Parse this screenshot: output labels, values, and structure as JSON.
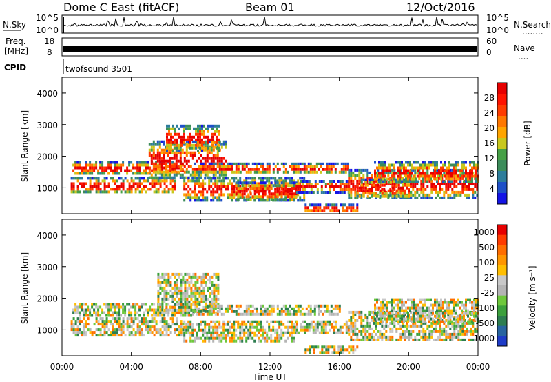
{
  "header": {
    "radar": "Dome C East (fitACF)",
    "beam": "Beam 01",
    "date": "12/Oct/2016"
  },
  "noise_panel": {
    "left_label": "N.Sky",
    "right_label": "N.Search",
    "right_sublabel": "........",
    "tick_top": "10^5",
    "tick_bottom": "10^0"
  },
  "freq_panel": {
    "label_line1": "Freq.",
    "label_line2": "[MHz]",
    "tick_top": "18",
    "tick_bottom": "8",
    "right_tick_top": "60",
    "right_tick_bottom": "0",
    "right_label": "Nave",
    "right_sublabel": "....",
    "cpid_label": "CPID",
    "cpid_value": "twofsound 3501"
  },
  "chart_data": [
    {
      "type": "heatmap",
      "quantity": "Power",
      "ylabel": "Slant Range [km]",
      "yticks": [
        "1000",
        "2000",
        "3000",
        "4000"
      ],
      "ylim": [
        180,
        4500
      ],
      "xlim_hours": [
        0,
        24
      ],
      "colorbar_label": "Power [dB]",
      "colorbar_ticks": [
        "4",
        "8",
        "12",
        "16",
        "20",
        "24",
        "28"
      ],
      "colorbar_colors": [
        "#1414e6",
        "#1e50c8",
        "#2d7d9b",
        "#3c8c5a",
        "#46a046",
        "#c8c81e",
        "#ffa500",
        "#ff7800",
        "#ff3c00",
        "#ff1400",
        "#e60000"
      ],
      "regions": [
        {
          "t": [
            0.6,
            7.0
          ],
          "r": [
            1450,
            1850
          ]
        },
        {
          "t": [
            0.5,
            6.5
          ],
          "r": [
            850,
            1350
          ]
        },
        {
          "t": [
            5.0,
            9.5
          ],
          "r": [
            1300,
            2500
          ]
        },
        {
          "t": [
            6.0,
            9.0
          ],
          "r": [
            2200,
            3000
          ]
        },
        {
          "t": [
            7.5,
            16.5
          ],
          "r": [
            1500,
            1800
          ]
        },
        {
          "t": [
            7.0,
            14.0
          ],
          "r": [
            650,
            1350
          ]
        },
        {
          "t": [
            10.0,
            13.5
          ],
          "r": [
            600,
            1200
          ]
        },
        {
          "t": [
            13.5,
            16.5
          ],
          "r": [
            900,
            1250
          ]
        },
        {
          "t": [
            14.0,
            17.0
          ],
          "r": [
            250,
            500
          ]
        },
        {
          "t": [
            16.5,
            24.0
          ],
          "r": [
            700,
            1600
          ]
        },
        {
          "t": [
            17.0,
            20.0
          ],
          "r": [
            700,
            1300
          ]
        },
        {
          "t": [
            18.0,
            24.0
          ],
          "r": [
            1200,
            1850
          ]
        }
      ]
    },
    {
      "type": "heatmap",
      "quantity": "Velocity",
      "ylabel": "Slant Range [km]",
      "yticks": [
        "1000",
        "2000",
        "3000",
        "4000"
      ],
      "ylim": [
        180,
        4500
      ],
      "xlim_hours": [
        0,
        24
      ],
      "xticks": [
        "00:00",
        "04:00",
        "08:00",
        "12:00",
        "16:00",
        "20:00",
        "00:00"
      ],
      "xlabel": "Time UT",
      "colorbar_label": "Velocity [m s⁻¹]",
      "colorbar_ticks": [
        "1000",
        "500",
        "100",
        "25",
        "-25",
        "-100",
        "-500",
        "-1000"
      ],
      "colorbar_colors": [
        "#1e3cc8",
        "#2864a0",
        "#2d7d50",
        "#3ca03c",
        "#6ec83c",
        "#b4b4b4",
        "#c8c8c8",
        "#ffbe00",
        "#ff9600",
        "#ff6e00",
        "#ff3c00",
        "#e60000"
      ],
      "regions": [
        {
          "t": [
            0.6,
            7.5
          ],
          "r": [
            1500,
            1850
          ]
        },
        {
          "t": [
            0.5,
            7.0
          ],
          "r": [
            800,
            1400
          ]
        },
        {
          "t": [
            5.5,
            9.0
          ],
          "r": [
            1500,
            2800
          ]
        },
        {
          "t": [
            7.5,
            16.0
          ],
          "r": [
            1500,
            1800
          ]
        },
        {
          "t": [
            7.0,
            13.5
          ],
          "r": [
            650,
            1300
          ]
        },
        {
          "t": [
            13.5,
            16.5
          ],
          "r": [
            900,
            1300
          ]
        },
        {
          "t": [
            14.0,
            17.0
          ],
          "r": [
            250,
            500
          ]
        },
        {
          "t": [
            16.5,
            24.0
          ],
          "r": [
            700,
            1600
          ]
        },
        {
          "t": [
            18.0,
            24.0
          ],
          "r": [
            1300,
            2000
          ]
        }
      ]
    }
  ]
}
